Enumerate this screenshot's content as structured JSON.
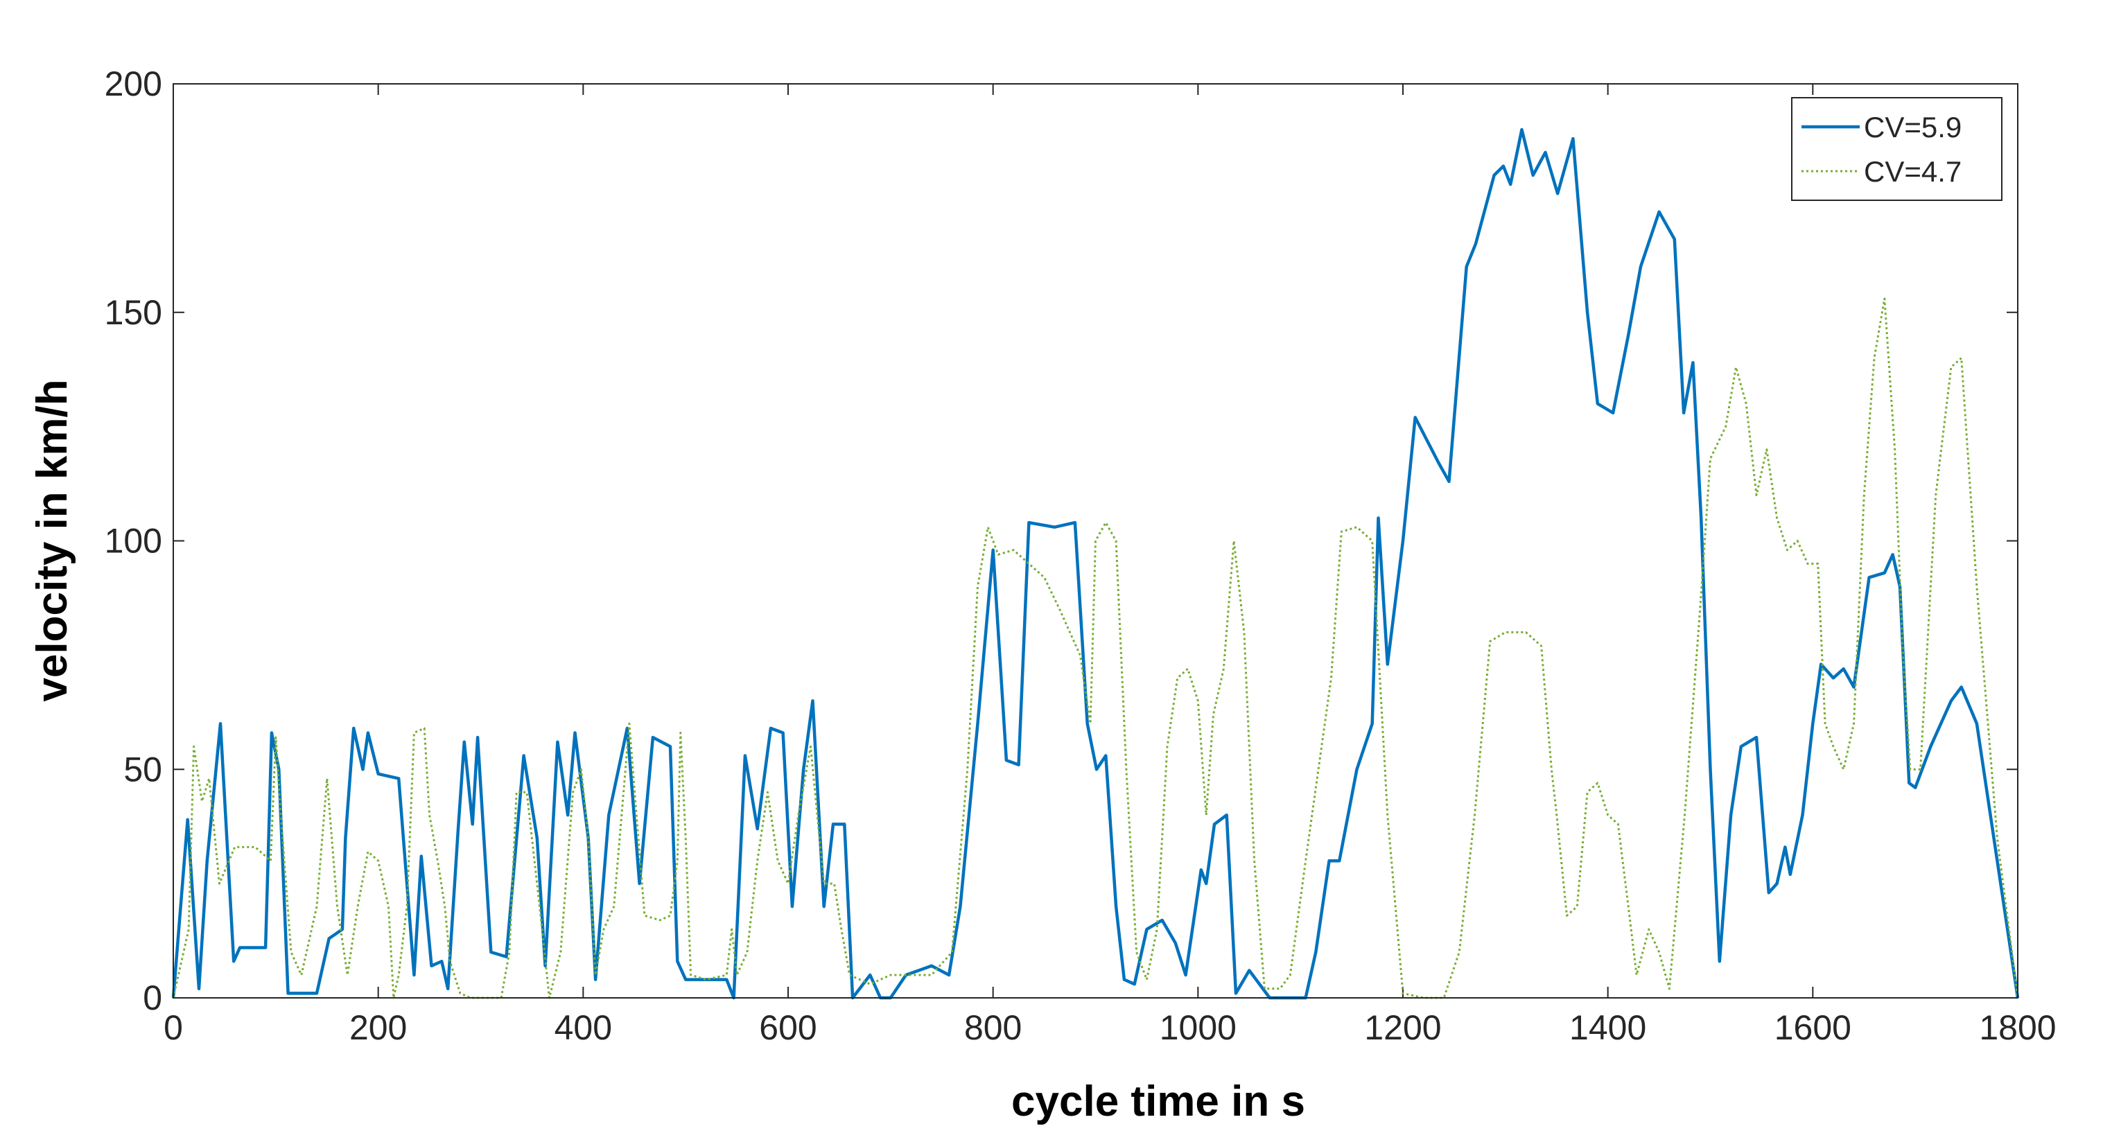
{
  "chart_data": {
    "type": "line",
    "x_label": "cycle time in s",
    "y_label": "velocity in km/h",
    "xlim": [
      0,
      1800
    ],
    "xticks": [
      0,
      200,
      400,
      600,
      800,
      1000,
      1200,
      1400,
      1600,
      1800
    ],
    "ylim": [
      0,
      200
    ],
    "yticks": [
      0,
      50,
      100,
      150,
      200
    ],
    "grid": false,
    "legend": "upper right",
    "series": [
      {
        "name": "CV=5.9",
        "color": "#0072bd",
        "style": "solid",
        "x": [
          0,
          14,
          25,
          33,
          46,
          59,
          65,
          90,
          96,
          103,
          112,
          140,
          152,
          165,
          168,
          176,
          185,
          190,
          200,
          220,
          235,
          242,
          252,
          262,
          268,
          278,
          284,
          292,
          297,
          310,
          325,
          342,
          355,
          363,
          375,
          385,
          392,
          405,
          412,
          425,
          443,
          455,
          468,
          485,
          492,
          500,
          540,
          547,
          558,
          570,
          583,
          595,
          604,
          615,
          624,
          635,
          644,
          655,
          663,
          680,
          690,
          700,
          715,
          740,
          757,
          768,
          785,
          800,
          813,
          825,
          835,
          860,
          880,
          892,
          901,
          910,
          920,
          928,
          938,
          950,
          965,
          978,
          988,
          1003,
          1008,
          1016,
          1028,
          1037,
          1050,
          1070,
          1105,
          1115,
          1128,
          1138,
          1155,
          1170,
          1176,
          1185,
          1200,
          1212,
          1235,
          1245,
          1262,
          1271,
          1289,
          1298,
          1305,
          1316,
          1327,
          1339,
          1351,
          1366,
          1380,
          1390,
          1405,
          1420,
          1432,
          1450,
          1465,
          1474,
          1483,
          1491,
          1500,
          1509,
          1520,
          1530,
          1545,
          1557,
          1565,
          1573,
          1578,
          1590,
          1600,
          1608,
          1620,
          1630,
          1640,
          1655,
          1670,
          1678,
          1685,
          1694,
          1700,
          1715,
          1735,
          1745,
          1760,
          1780,
          1800
        ],
        "values": [
          0,
          39,
          2,
          30,
          60,
          8,
          11,
          11,
          58,
          50,
          1,
          1,
          13,
          15,
          35,
          59,
          50,
          58,
          49,
          48,
          5,
          31,
          7,
          8,
          2,
          37,
          56,
          38,
          57,
          10,
          9,
          53,
          35,
          7,
          56,
          40,
          58,
          35,
          4,
          40,
          59,
          25,
          57,
          55,
          8,
          4,
          4,
          0,
          53,
          37,
          59,
          58,
          20,
          50,
          65,
          20,
          38,
          38,
          0,
          5,
          0,
          0,
          5,
          7,
          5,
          20,
          60,
          98,
          52,
          51,
          104,
          103,
          104,
          60,
          50,
          53,
          20,
          4,
          3,
          15,
          17,
          12,
          5,
          28,
          25,
          38,
          40,
          1,
          6,
          0,
          0,
          10,
          30,
          30,
          50,
          60,
          105,
          73,
          100,
          127,
          117,
          113,
          160,
          165,
          180,
          182,
          178,
          190,
          180,
          185,
          176,
          188,
          150,
          130,
          128,
          145,
          160,
          172,
          166,
          128,
          139,
          105,
          50,
          8,
          40,
          55,
          57,
          23,
          25,
          33,
          27,
          40,
          60,
          73,
          70,
          72,
          68,
          92,
          93,
          97,
          90,
          47,
          46,
          55,
          65,
          68,
          60,
          30,
          0
        ]
      },
      {
        "name": "CV=4.7",
        "color": "#77ac30",
        "style": "dotted",
        "x": [
          0,
          15,
          20,
          28,
          35,
          45,
          60,
          80,
          95,
          100,
          105,
          115,
          125,
          140,
          150,
          160,
          170,
          180,
          190,
          200,
          210,
          215,
          220,
          228,
          235,
          245,
          250,
          258,
          265,
          270,
          280,
          290,
          320,
          328,
          335,
          345,
          360,
          367,
          378,
          390,
          398,
          405,
          412,
          420,
          430,
          445,
          452,
          460,
          475,
          485,
          492,
          495,
          500,
          505,
          520,
          540,
          545,
          550,
          560,
          570,
          580,
          590,
          600,
          610,
          622,
          635,
          645,
          652,
          660,
          680,
          700,
          720,
          740,
          760,
          775,
          785,
          795,
          805,
          820,
          835,
          850,
          865,
          875,
          885,
          895,
          900,
          910,
          920,
          930,
          940,
          950,
          960,
          970,
          980,
          990,
          1000,
          1008,
          1015,
          1025,
          1035,
          1045,
          1055,
          1065,
          1080,
          1090,
          1105,
          1130,
          1140,
          1155,
          1170,
          1185,
          1200,
          1220,
          1240,
          1255,
          1270,
          1285,
          1300,
          1320,
          1335,
          1345,
          1350,
          1360,
          1370,
          1380,
          1390,
          1400,
          1410,
          1420,
          1428,
          1440,
          1450,
          1460,
          1475,
          1490,
          1500,
          1515,
          1525,
          1535,
          1545,
          1555,
          1565,
          1575,
          1585,
          1595,
          1605,
          1612,
          1620,
          1630,
          1640,
          1650,
          1660,
          1670,
          1680,
          1688,
          1695,
          1705,
          1720,
          1735,
          1745,
          1760,
          1780,
          1800
        ],
        "values": [
          0,
          15,
          55,
          43,
          48,
          25,
          33,
          33,
          30,
          57,
          40,
          10,
          5,
          20,
          48,
          20,
          5,
          20,
          32,
          30,
          20,
          0,
          5,
          20,
          58,
          59,
          40,
          30,
          20,
          8,
          1,
          0,
          0,
          10,
          45,
          45,
          15,
          0,
          10,
          45,
          50,
          35,
          5,
          15,
          20,
          60,
          40,
          18,
          17,
          18,
          30,
          58,
          35,
          5,
          4,
          5,
          15,
          5,
          10,
          30,
          45,
          30,
          25,
          40,
          55,
          25,
          25,
          15,
          5,
          3,
          5,
          5,
          5,
          10,
          50,
          90,
          103,
          97,
          98,
          95,
          92,
          85,
          80,
          75,
          60,
          100,
          104,
          100,
          50,
          10,
          4,
          15,
          55,
          70,
          72,
          65,
          40,
          62,
          72,
          100,
          80,
          30,
          2,
          2,
          5,
          30,
          70,
          102,
          103,
          100,
          40,
          1,
          0,
          0,
          10,
          40,
          78,
          80,
          80,
          77,
          50,
          40,
          18,
          20,
          45,
          47,
          40,
          38,
          20,
          5,
          15,
          10,
          2,
          40,
          85,
          118,
          125,
          138,
          130,
          110,
          120,
          105,
          98,
          100,
          95,
          95,
          60,
          55,
          50,
          60,
          110,
          140,
          153,
          120,
          75,
          50,
          50,
          110,
          138,
          140,
          90,
          35,
          0
        ]
      }
    ]
  }
}
